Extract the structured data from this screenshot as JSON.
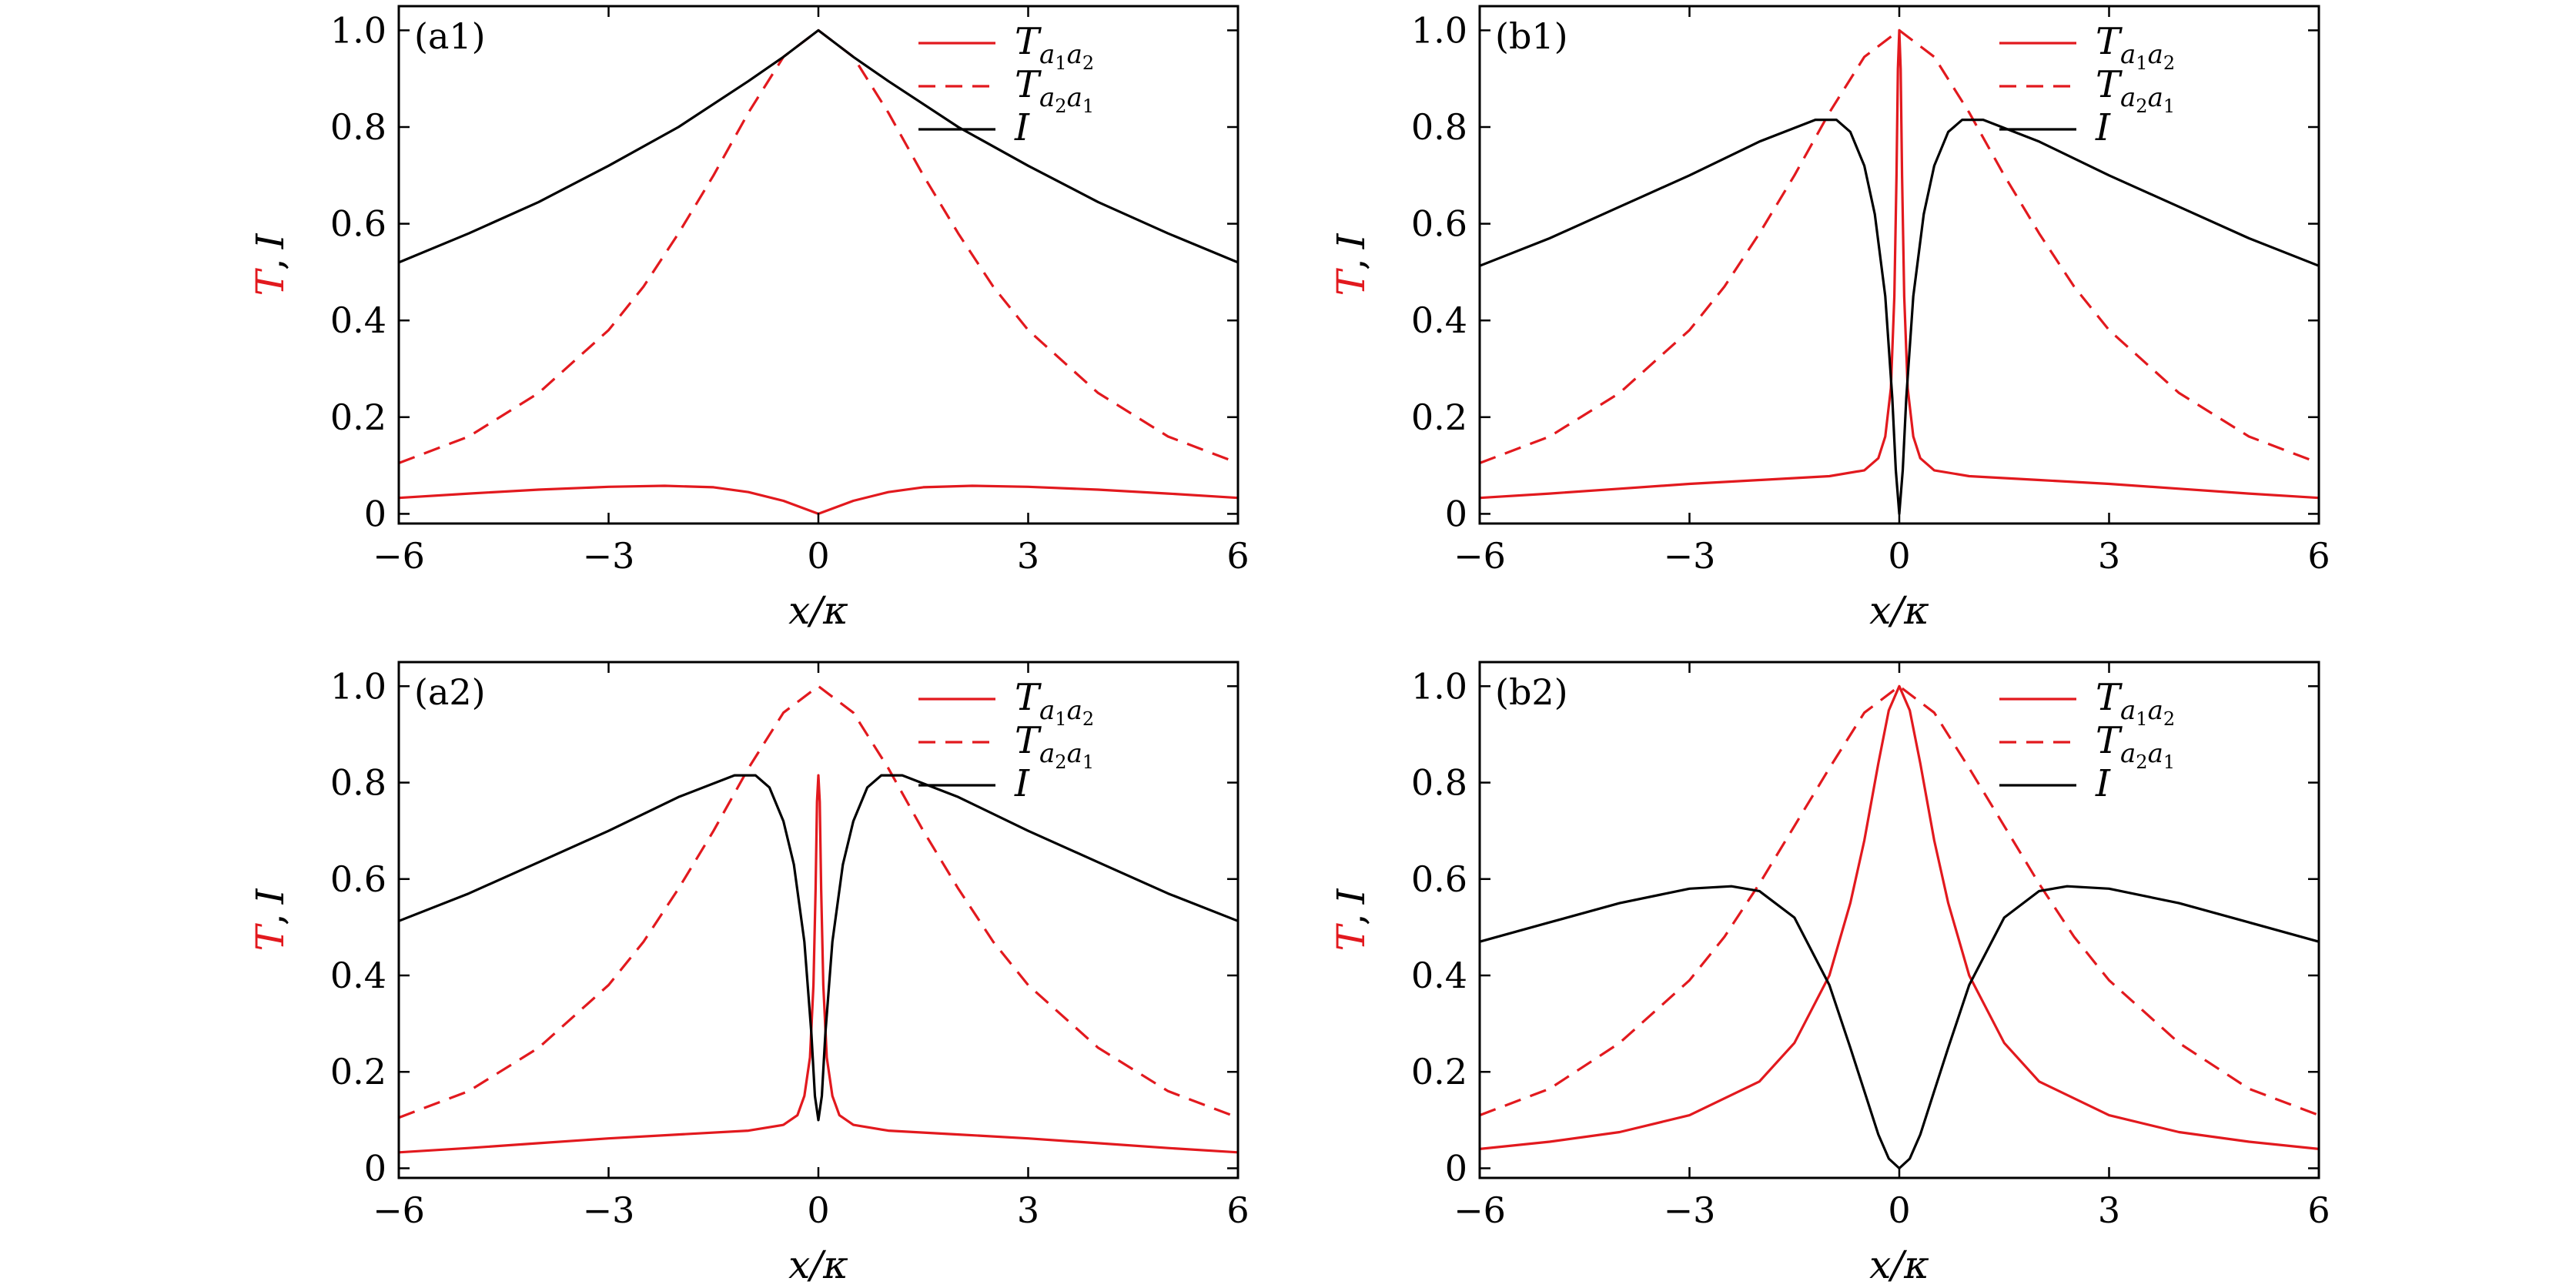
{
  "colors": {
    "red": "#e2191e",
    "black": "#000000"
  },
  "chart_data": [
    {
      "type": "line",
      "panel_label": "(a1)",
      "xlabel": "x/κ",
      "ylabel": "T, I",
      "xlim": [
        -6,
        6
      ],
      "ylim": [
        -0.02,
        1.05
      ],
      "xticks": [
        -6,
        -3,
        0,
        3,
        6
      ],
      "xtick_labels": [
        "−6",
        "−3",
        "0",
        "3",
        "6"
      ],
      "yticks": [
        0,
        0.2,
        0.4,
        0.6,
        0.8,
        1.0
      ],
      "ytick_labels": [
        "0",
        "0.2",
        "0.4",
        "0.6",
        "0.8",
        "1.0"
      ],
      "legend_position": "top-right",
      "series": [
        {
          "name": "T_{a1a2}",
          "color": "#e2191e",
          "style": "solid",
          "x": [
            -6,
            -5,
            -4,
            -3,
            -2.2,
            -1.5,
            -1,
            -0.5,
            0,
            0.5,
            1,
            1.5,
            2.2,
            3,
            4,
            5,
            6
          ],
          "y": [
            0.033,
            0.042,
            0.05,
            0.056,
            0.058,
            0.055,
            0.045,
            0.027,
            0.0,
            0.027,
            0.045,
            0.055,
            0.058,
            0.056,
            0.05,
            0.042,
            0.033
          ]
        },
        {
          "name": "T_{a2a1}",
          "color": "#e2191e",
          "style": "dashed",
          "x": [
            -6,
            -5,
            -4,
            -3,
            -2.5,
            -2,
            -1.5,
            -1,
            -0.5,
            0,
            0.5,
            1,
            1.5,
            2,
            2.5,
            3,
            4,
            5,
            6
          ],
          "y": [
            0.105,
            0.16,
            0.25,
            0.38,
            0.47,
            0.58,
            0.7,
            0.83,
            0.945,
            1.0,
            0.945,
            0.83,
            0.7,
            0.58,
            0.47,
            0.38,
            0.25,
            0.16,
            0.105
          ]
        },
        {
          "name": "I",
          "color": "#000000",
          "style": "solid",
          "x": [
            -6,
            -5,
            -4,
            -3,
            -2,
            -1,
            -0.5,
            0,
            0.5,
            1,
            2,
            3,
            4,
            5,
            6
          ],
          "y": [
            0.52,
            0.58,
            0.645,
            0.72,
            0.8,
            0.895,
            0.945,
            1.0,
            0.945,
            0.895,
            0.8,
            0.72,
            0.645,
            0.58,
            0.52
          ]
        }
      ]
    },
    {
      "type": "line",
      "panel_label": "(b1)",
      "xlabel": "x/κ",
      "ylabel": "T, I",
      "xlim": [
        -6,
        6
      ],
      "ylim": [
        -0.02,
        1.05
      ],
      "xticks": [
        -6,
        -3,
        0,
        3,
        6
      ],
      "xtick_labels": [
        "−6",
        "−3",
        "0",
        "3",
        "6"
      ],
      "yticks": [
        0,
        0.2,
        0.4,
        0.6,
        0.8,
        1.0
      ],
      "ytick_labels": [
        "0",
        "0.2",
        "0.4",
        "0.6",
        "0.8",
        "1.0"
      ],
      "legend_position": "top-right",
      "series": [
        {
          "name": "T_{a1a2}",
          "color": "#e2191e",
          "style": "solid",
          "x": [
            -6,
            -5,
            -4,
            -3,
            -2,
            -1,
            -0.5,
            -0.3,
            -0.2,
            -0.12,
            -0.07,
            -0.04,
            -0.02,
            0,
            0.02,
            0.04,
            0.07,
            0.12,
            0.2,
            0.3,
            0.5,
            1,
            2,
            3,
            4,
            5,
            6
          ],
          "y": [
            0.033,
            0.042,
            0.052,
            0.062,
            0.07,
            0.078,
            0.09,
            0.115,
            0.16,
            0.26,
            0.45,
            0.7,
            0.92,
            1.0,
            0.92,
            0.7,
            0.45,
            0.26,
            0.16,
            0.115,
            0.09,
            0.078,
            0.07,
            0.062,
            0.052,
            0.042,
            0.033
          ]
        },
        {
          "name": "T_{a2a1}",
          "color": "#e2191e",
          "style": "dashed",
          "x": [
            -6,
            -5,
            -4,
            -3,
            -2.5,
            -2,
            -1.5,
            -1,
            -0.5,
            0,
            0.5,
            1,
            1.5,
            2,
            2.5,
            3,
            4,
            5,
            6
          ],
          "y": [
            0.105,
            0.16,
            0.25,
            0.38,
            0.47,
            0.58,
            0.7,
            0.83,
            0.945,
            1.0,
            0.945,
            0.83,
            0.7,
            0.58,
            0.47,
            0.38,
            0.25,
            0.16,
            0.105
          ]
        },
        {
          "name": "I",
          "color": "#000000",
          "style": "solid",
          "x": [
            -6,
            -5,
            -4,
            -3,
            -2,
            -1.2,
            -0.9,
            -0.7,
            -0.5,
            -0.35,
            -0.2,
            -0.1,
            -0.05,
            0,
            0.05,
            0.1,
            0.2,
            0.35,
            0.5,
            0.7,
            0.9,
            1.2,
            2,
            3,
            4,
            5,
            6
          ],
          "y": [
            0.513,
            0.57,
            0.635,
            0.7,
            0.77,
            0.815,
            0.815,
            0.79,
            0.72,
            0.62,
            0.45,
            0.24,
            0.09,
            0.0,
            0.09,
            0.24,
            0.45,
            0.62,
            0.72,
            0.79,
            0.815,
            0.815,
            0.77,
            0.7,
            0.635,
            0.57,
            0.513
          ]
        }
      ]
    },
    {
      "type": "line",
      "panel_label": "(a2)",
      "xlabel": "x/κ",
      "ylabel": "T, I",
      "xlim": [
        -6,
        6
      ],
      "ylim": [
        -0.02,
        1.05
      ],
      "xticks": [
        -6,
        -3,
        0,
        3,
        6
      ],
      "xtick_labels": [
        "−6",
        "−3",
        "0",
        "3",
        "6"
      ],
      "yticks": [
        0,
        0.2,
        0.4,
        0.6,
        0.8,
        1.0
      ],
      "ytick_labels": [
        "0",
        "0.2",
        "0.4",
        "0.6",
        "0.8",
        "1.0"
      ],
      "legend_position": "top-right",
      "series": [
        {
          "name": "T_{a1a2}",
          "color": "#e2191e",
          "style": "solid",
          "x": [
            -6,
            -5,
            -4,
            -3,
            -2,
            -1,
            -0.5,
            -0.3,
            -0.2,
            -0.12,
            -0.07,
            -0.04,
            -0.02,
            0,
            0.02,
            0.04,
            0.07,
            0.12,
            0.2,
            0.3,
            0.5,
            1,
            2,
            3,
            4,
            5,
            6
          ],
          "y": [
            0.033,
            0.042,
            0.052,
            0.062,
            0.07,
            0.078,
            0.09,
            0.11,
            0.15,
            0.23,
            0.38,
            0.58,
            0.76,
            0.815,
            0.76,
            0.58,
            0.38,
            0.23,
            0.15,
            0.11,
            0.09,
            0.078,
            0.07,
            0.062,
            0.052,
            0.042,
            0.033
          ]
        },
        {
          "name": "T_{a2a1}",
          "color": "#e2191e",
          "style": "dashed",
          "x": [
            -6,
            -5,
            -4,
            -3,
            -2.5,
            -2,
            -1.5,
            -1,
            -0.5,
            0,
            0.5,
            1,
            1.5,
            2,
            2.5,
            3,
            4,
            5,
            6
          ],
          "y": [
            0.105,
            0.16,
            0.25,
            0.38,
            0.47,
            0.58,
            0.7,
            0.83,
            0.945,
            1.0,
            0.945,
            0.83,
            0.7,
            0.58,
            0.47,
            0.38,
            0.25,
            0.16,
            0.105
          ]
        },
        {
          "name": "I",
          "color": "#000000",
          "style": "solid",
          "x": [
            -6,
            -5,
            -4,
            -3,
            -2,
            -1.2,
            -0.9,
            -0.7,
            -0.5,
            -0.35,
            -0.2,
            -0.1,
            -0.05,
            0,
            0.05,
            0.1,
            0.2,
            0.35,
            0.5,
            0.7,
            0.9,
            1.2,
            2,
            3,
            4,
            5,
            6
          ],
          "y": [
            0.513,
            0.57,
            0.635,
            0.7,
            0.77,
            0.815,
            0.815,
            0.79,
            0.72,
            0.63,
            0.47,
            0.28,
            0.15,
            0.1,
            0.15,
            0.28,
            0.47,
            0.63,
            0.72,
            0.79,
            0.815,
            0.815,
            0.77,
            0.7,
            0.635,
            0.57,
            0.513
          ]
        }
      ]
    },
    {
      "type": "line",
      "panel_label": "(b2)",
      "xlabel": "x/κ",
      "ylabel": "T, I",
      "xlim": [
        -6,
        6
      ],
      "ylim": [
        -0.02,
        1.05
      ],
      "xticks": [
        -6,
        -3,
        0,
        3,
        6
      ],
      "xtick_labels": [
        "−6",
        "−3",
        "0",
        "3",
        "6"
      ],
      "yticks": [
        0,
        0.2,
        0.4,
        0.6,
        0.8,
        1.0
      ],
      "ytick_labels": [
        "0",
        "0.2",
        "0.4",
        "0.6",
        "0.8",
        "1.0"
      ],
      "legend_position": "top-right",
      "series": [
        {
          "name": "T_{a1a2}",
          "color": "#e2191e",
          "style": "solid",
          "x": [
            -6,
            -5,
            -4,
            -3,
            -2,
            -1.5,
            -1,
            -0.7,
            -0.5,
            -0.3,
            -0.15,
            0,
            0.15,
            0.3,
            0.5,
            0.7,
            1,
            1.5,
            2,
            3,
            4,
            5,
            6
          ],
          "y": [
            0.04,
            0.055,
            0.075,
            0.11,
            0.18,
            0.26,
            0.4,
            0.55,
            0.68,
            0.84,
            0.95,
            1.0,
            0.95,
            0.84,
            0.68,
            0.55,
            0.4,
            0.26,
            0.18,
            0.11,
            0.075,
            0.055,
            0.04
          ]
        },
        {
          "name": "T_{a2a1}",
          "color": "#e2191e",
          "style": "dashed",
          "x": [
            -6,
            -5,
            -4,
            -3,
            -2.5,
            -2,
            -1.5,
            -1,
            -0.5,
            0,
            0.5,
            1,
            1.5,
            2,
            2.5,
            3,
            4,
            5,
            6
          ],
          "y": [
            0.11,
            0.165,
            0.26,
            0.39,
            0.48,
            0.59,
            0.71,
            0.83,
            0.945,
            1.0,
            0.945,
            0.83,
            0.71,
            0.59,
            0.48,
            0.39,
            0.26,
            0.165,
            0.11
          ]
        },
        {
          "name": "I",
          "color": "#000000",
          "style": "solid",
          "x": [
            -6,
            -5,
            -4,
            -3,
            -2.4,
            -2,
            -1.5,
            -1,
            -0.7,
            -0.5,
            -0.3,
            -0.15,
            0,
            0.15,
            0.3,
            0.5,
            0.7,
            1,
            1.5,
            2,
            2.4,
            3,
            4,
            5,
            6
          ],
          "y": [
            0.47,
            0.51,
            0.55,
            0.58,
            0.585,
            0.575,
            0.52,
            0.38,
            0.25,
            0.16,
            0.07,
            0.02,
            0.0,
            0.02,
            0.07,
            0.16,
            0.25,
            0.38,
            0.52,
            0.575,
            0.585,
            0.58,
            0.55,
            0.51,
            0.47
          ]
        }
      ]
    }
  ]
}
